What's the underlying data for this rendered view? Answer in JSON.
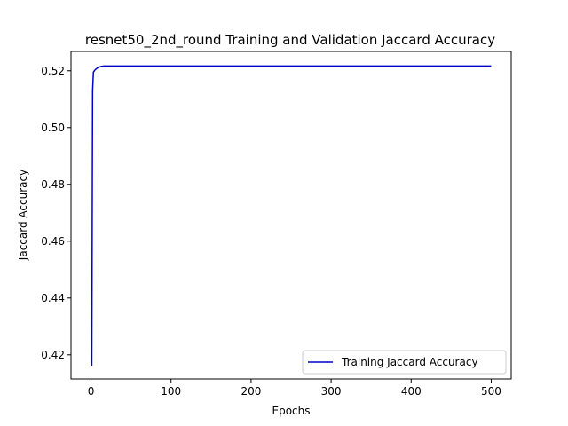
{
  "chart_data": {
    "type": "line",
    "title": "resnet50_2nd_round Training and Validation Jaccard Accuracy",
    "xlabel": "Epochs",
    "ylabel": "Jaccard Accuracy",
    "xlim": [
      -25,
      525
    ],
    "ylim": [
      0.4115,
      0.5268
    ],
    "xticks": [
      0,
      100,
      200,
      300,
      400,
      500
    ],
    "xtick_labels": [
      "0",
      "100",
      "200",
      "300",
      "400",
      "500"
    ],
    "yticks": [
      0.42,
      0.44,
      0.46,
      0.48,
      0.5,
      0.52
    ],
    "ytick_labels": [
      "0.42",
      "0.44",
      "0.46",
      "0.48",
      "0.50",
      "0.52"
    ],
    "grid": false,
    "legend_position": "lower-right",
    "series": [
      {
        "name": "Training Jaccard Accuracy",
        "color": "#0000cc",
        "x": [
          1,
          2,
          3,
          5,
          8,
          12,
          16,
          20,
          30,
          50,
          100,
          200,
          300,
          400,
          500
        ],
        "y": [
          0.4162,
          0.513,
          0.5195,
          0.5203,
          0.521,
          0.5215,
          0.5217,
          0.5217,
          0.5217,
          0.5217,
          0.5217,
          0.5217,
          0.5217,
          0.5217,
          0.5217
        ]
      }
    ]
  }
}
